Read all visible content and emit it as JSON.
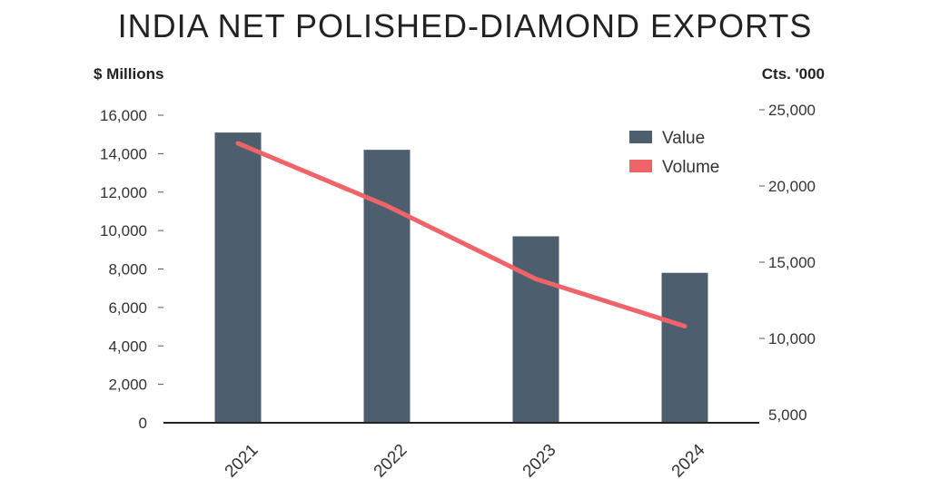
{
  "chart_data": {
    "type": "bar",
    "title": "INDIA NET POLISHED-DIAMOND EXPORTS",
    "categories": [
      "2021",
      "2022",
      "2023",
      "2024"
    ],
    "series": [
      {
        "name": "Value",
        "type": "bar",
        "axis": "left",
        "color": "#4d5f6e",
        "values": [
          15100,
          14200,
          9700,
          7800
        ]
      },
      {
        "name": "Volume",
        "type": "line",
        "axis": "right",
        "color": "#ef6468",
        "values": [
          22800,
          18700,
          13900,
          10800
        ]
      }
    ],
    "ylabel_left": "$ Millions",
    "ylabel_right": "Cts. '000",
    "ylim_left": [
      0,
      16000
    ],
    "ylim_right": [
      5000,
      25000
    ],
    "yticks_left": [
      "0",
      "2,000",
      "4,000",
      "6,000",
      "8,000",
      "10,000",
      "12,000",
      "14,000",
      "16,000"
    ],
    "yticks_right": [
      "5,000",
      "10,000",
      "15,000",
      "20,000",
      "25,000"
    ],
    "legend_position": "top-right",
    "grid": false
  }
}
